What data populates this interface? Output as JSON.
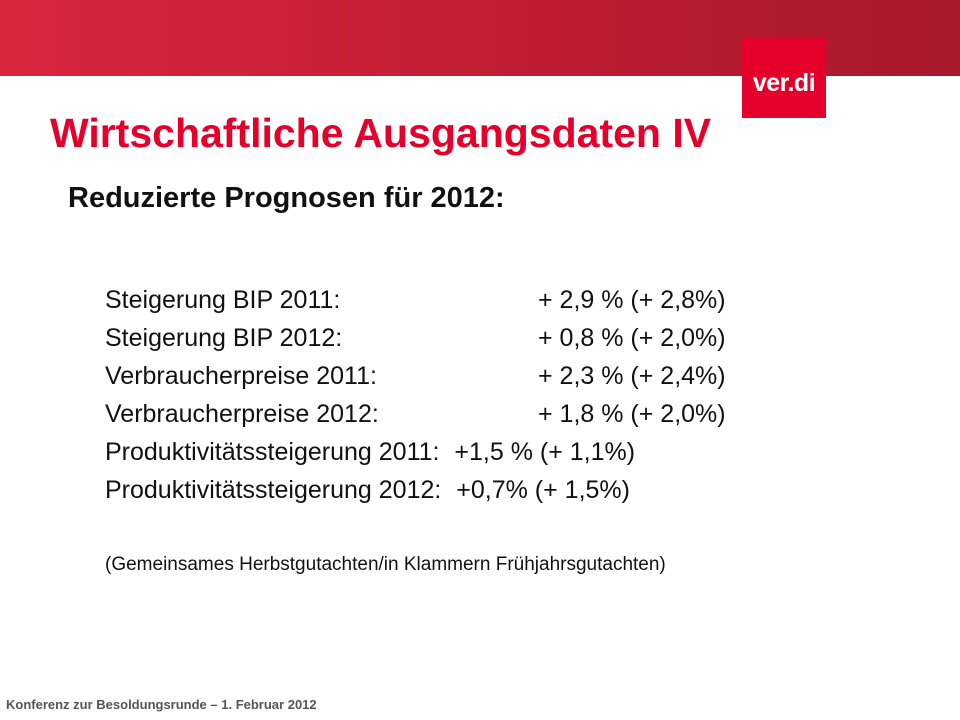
{
  "header": {
    "logo_text": "ver.di",
    "brand_color": "#e4002b",
    "banner_color": "#c51e35"
  },
  "slide": {
    "title": "Wirtschaftliche Ausgangsdaten IV",
    "subtitle": "Reduzierte Prognosen für 2012:",
    "rows": [
      {
        "label": "Steigerung BIP 2011:",
        "value": "+ 2,9 % (+ 2,8%)"
      },
      {
        "label": "Steigerung BIP 2012:",
        "value": "+ 0,8 % (+ 2,0%)"
      },
      {
        "label": "Verbraucherpreise 2011:",
        "value": "+ 2,3 % (+ 2,4%)"
      },
      {
        "label": "Verbraucherpreise 2012:",
        "value": "+ 1,8 % (+ 2,0%)"
      },
      {
        "label": "Produktivitätssteigerung 2011:",
        "value": "+1,5 % (+ 1,1%)"
      },
      {
        "label": "Produktivitätssteigerung 2012:",
        "value": "+0,7%  (+ 1,5%)"
      }
    ],
    "source_note": "(Gemeinsames Herbstgutachten/in Klammern Frühjahrsgutachten)"
  },
  "footer": {
    "text": "Konferenz zur Besoldungsrunde – 1. Februar 2012"
  }
}
